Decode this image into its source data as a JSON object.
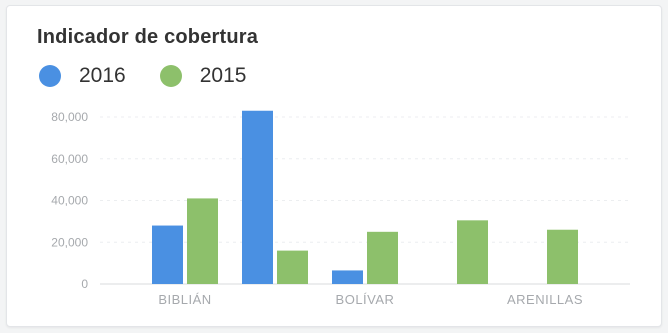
{
  "chart_data": {
    "type": "bar",
    "title": "Indicador de cobertura",
    "categories": [
      "BIBLIÁN",
      "",
      "BOLÍVAR",
      "",
      "ARENILLAS"
    ],
    "series": [
      {
        "name": "2016",
        "color": "#4a90e2",
        "values": [
          28000,
          83000,
          6500,
          null,
          null
        ]
      },
      {
        "name": "2015",
        "color": "#8dc06b",
        "values": [
          41000,
          16000,
          25000,
          30500,
          26000
        ]
      }
    ],
    "ylim": [
      0,
      90000
    ],
    "yticks": [
      0,
      20000,
      40000,
      60000,
      80000
    ],
    "ytick_labels": [
      "0",
      "20,000",
      "40,000",
      "60,000",
      "80,000"
    ],
    "xlabel": "",
    "ylabel": "",
    "grid": true,
    "legend_position": "top-left"
  }
}
